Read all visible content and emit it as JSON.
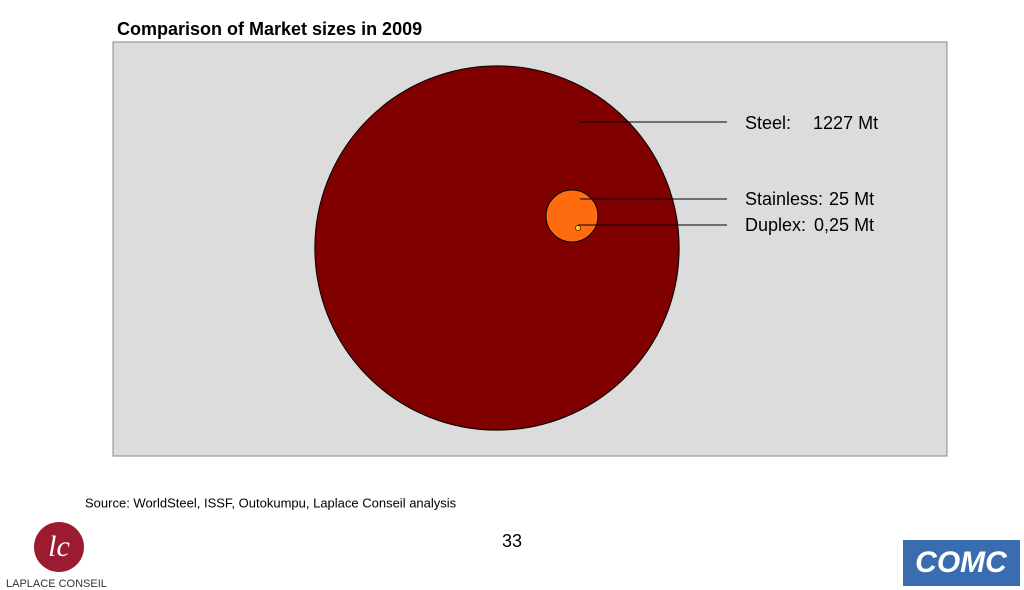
{
  "chart_data": {
    "type": "bubble",
    "title": "Comparison of Market sizes in 2009",
    "categories": [
      "Steel:",
      "Stainless:",
      "Duplex:"
    ],
    "values": [
      1227,
      25,
      0.25
    ],
    "value_labels": [
      "1227 Mt",
      "25 Mt",
      "0,25 Mt"
    ],
    "colors": [
      "#800000",
      "#ff6b0f",
      "#ffd21a"
    ]
  },
  "slide": {
    "source": "Source: WorldSteel, ISSF, Outokumpu, Laplace Conseil analysis",
    "page_number": "33",
    "logo_left_mark": "lc",
    "logo_left_name": "LAPLACE CONSEIL",
    "logo_right": "COMC"
  }
}
